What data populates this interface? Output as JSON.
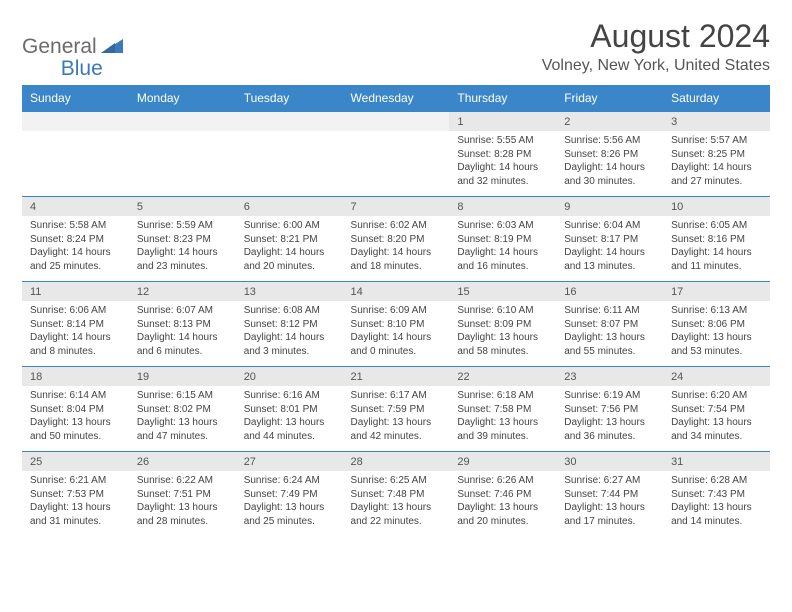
{
  "logo": {
    "text_general": "General",
    "text_blue": "Blue",
    "accent_color": "#3a7ab8",
    "gray_color": "#6b6b6b"
  },
  "header": {
    "month_title": "August 2024",
    "location": "Volney, New York, United States"
  },
  "colors": {
    "header_bg": "#3a86c8",
    "header_fg": "#ffffff",
    "daynum_bg": "#e8e8e8",
    "empty_bg": "#f2f2f2",
    "row_border": "#3a86c8",
    "text": "#444444"
  },
  "day_names": [
    "Sunday",
    "Monday",
    "Tuesday",
    "Wednesday",
    "Thursday",
    "Friday",
    "Saturday"
  ],
  "weeks": [
    [
      null,
      null,
      null,
      null,
      {
        "n": "1",
        "sr": "Sunrise: 5:55 AM",
        "ss": "Sunset: 8:28 PM",
        "dl": "Daylight: 14 hours and 32 minutes."
      },
      {
        "n": "2",
        "sr": "Sunrise: 5:56 AM",
        "ss": "Sunset: 8:26 PM",
        "dl": "Daylight: 14 hours and 30 minutes."
      },
      {
        "n": "3",
        "sr": "Sunrise: 5:57 AM",
        "ss": "Sunset: 8:25 PM",
        "dl": "Daylight: 14 hours and 27 minutes."
      }
    ],
    [
      {
        "n": "4",
        "sr": "Sunrise: 5:58 AM",
        "ss": "Sunset: 8:24 PM",
        "dl": "Daylight: 14 hours and 25 minutes."
      },
      {
        "n": "5",
        "sr": "Sunrise: 5:59 AM",
        "ss": "Sunset: 8:23 PM",
        "dl": "Daylight: 14 hours and 23 minutes."
      },
      {
        "n": "6",
        "sr": "Sunrise: 6:00 AM",
        "ss": "Sunset: 8:21 PM",
        "dl": "Daylight: 14 hours and 20 minutes."
      },
      {
        "n": "7",
        "sr": "Sunrise: 6:02 AM",
        "ss": "Sunset: 8:20 PM",
        "dl": "Daylight: 14 hours and 18 minutes."
      },
      {
        "n": "8",
        "sr": "Sunrise: 6:03 AM",
        "ss": "Sunset: 8:19 PM",
        "dl": "Daylight: 14 hours and 16 minutes."
      },
      {
        "n": "9",
        "sr": "Sunrise: 6:04 AM",
        "ss": "Sunset: 8:17 PM",
        "dl": "Daylight: 14 hours and 13 minutes."
      },
      {
        "n": "10",
        "sr": "Sunrise: 6:05 AM",
        "ss": "Sunset: 8:16 PM",
        "dl": "Daylight: 14 hours and 11 minutes."
      }
    ],
    [
      {
        "n": "11",
        "sr": "Sunrise: 6:06 AM",
        "ss": "Sunset: 8:14 PM",
        "dl": "Daylight: 14 hours and 8 minutes."
      },
      {
        "n": "12",
        "sr": "Sunrise: 6:07 AM",
        "ss": "Sunset: 8:13 PM",
        "dl": "Daylight: 14 hours and 6 minutes."
      },
      {
        "n": "13",
        "sr": "Sunrise: 6:08 AM",
        "ss": "Sunset: 8:12 PM",
        "dl": "Daylight: 14 hours and 3 minutes."
      },
      {
        "n": "14",
        "sr": "Sunrise: 6:09 AM",
        "ss": "Sunset: 8:10 PM",
        "dl": "Daylight: 14 hours and 0 minutes."
      },
      {
        "n": "15",
        "sr": "Sunrise: 6:10 AM",
        "ss": "Sunset: 8:09 PM",
        "dl": "Daylight: 13 hours and 58 minutes."
      },
      {
        "n": "16",
        "sr": "Sunrise: 6:11 AM",
        "ss": "Sunset: 8:07 PM",
        "dl": "Daylight: 13 hours and 55 minutes."
      },
      {
        "n": "17",
        "sr": "Sunrise: 6:13 AM",
        "ss": "Sunset: 8:06 PM",
        "dl": "Daylight: 13 hours and 53 minutes."
      }
    ],
    [
      {
        "n": "18",
        "sr": "Sunrise: 6:14 AM",
        "ss": "Sunset: 8:04 PM",
        "dl": "Daylight: 13 hours and 50 minutes."
      },
      {
        "n": "19",
        "sr": "Sunrise: 6:15 AM",
        "ss": "Sunset: 8:02 PM",
        "dl": "Daylight: 13 hours and 47 minutes."
      },
      {
        "n": "20",
        "sr": "Sunrise: 6:16 AM",
        "ss": "Sunset: 8:01 PM",
        "dl": "Daylight: 13 hours and 44 minutes."
      },
      {
        "n": "21",
        "sr": "Sunrise: 6:17 AM",
        "ss": "Sunset: 7:59 PM",
        "dl": "Daylight: 13 hours and 42 minutes."
      },
      {
        "n": "22",
        "sr": "Sunrise: 6:18 AM",
        "ss": "Sunset: 7:58 PM",
        "dl": "Daylight: 13 hours and 39 minutes."
      },
      {
        "n": "23",
        "sr": "Sunrise: 6:19 AM",
        "ss": "Sunset: 7:56 PM",
        "dl": "Daylight: 13 hours and 36 minutes."
      },
      {
        "n": "24",
        "sr": "Sunrise: 6:20 AM",
        "ss": "Sunset: 7:54 PM",
        "dl": "Daylight: 13 hours and 34 minutes."
      }
    ],
    [
      {
        "n": "25",
        "sr": "Sunrise: 6:21 AM",
        "ss": "Sunset: 7:53 PM",
        "dl": "Daylight: 13 hours and 31 minutes."
      },
      {
        "n": "26",
        "sr": "Sunrise: 6:22 AM",
        "ss": "Sunset: 7:51 PM",
        "dl": "Daylight: 13 hours and 28 minutes."
      },
      {
        "n": "27",
        "sr": "Sunrise: 6:24 AM",
        "ss": "Sunset: 7:49 PM",
        "dl": "Daylight: 13 hours and 25 minutes."
      },
      {
        "n": "28",
        "sr": "Sunrise: 6:25 AM",
        "ss": "Sunset: 7:48 PM",
        "dl": "Daylight: 13 hours and 22 minutes."
      },
      {
        "n": "29",
        "sr": "Sunrise: 6:26 AM",
        "ss": "Sunset: 7:46 PM",
        "dl": "Daylight: 13 hours and 20 minutes."
      },
      {
        "n": "30",
        "sr": "Sunrise: 6:27 AM",
        "ss": "Sunset: 7:44 PM",
        "dl": "Daylight: 13 hours and 17 minutes."
      },
      {
        "n": "31",
        "sr": "Sunrise: 6:28 AM",
        "ss": "Sunset: 7:43 PM",
        "dl": "Daylight: 13 hours and 14 minutes."
      }
    ]
  ]
}
